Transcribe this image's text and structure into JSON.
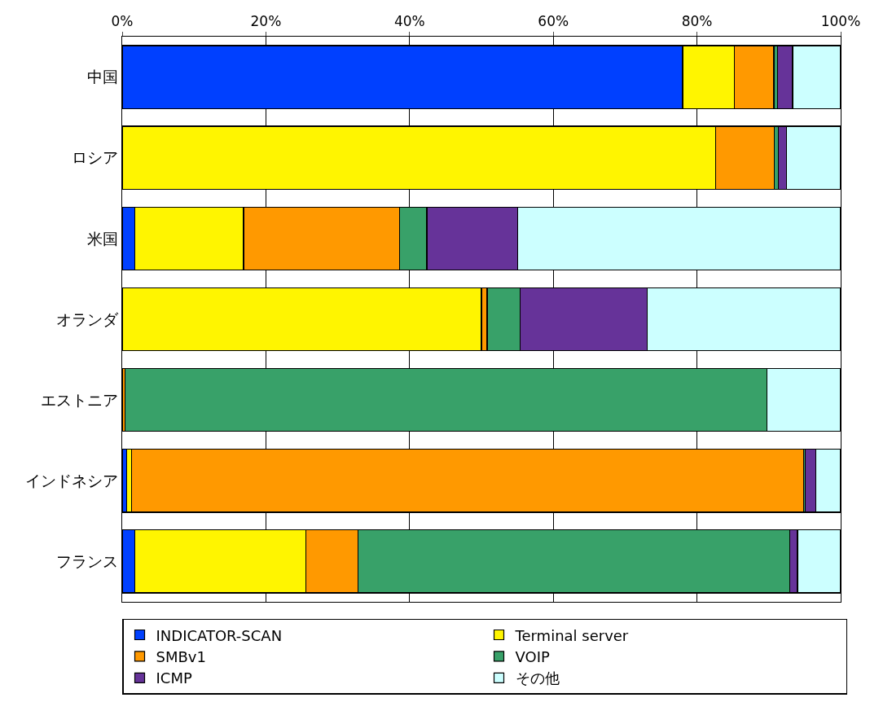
{
  "chart_data": {
    "type": "bar",
    "orientation": "horizontal",
    "stacked": true,
    "categories": [
      "中国",
      "ロシア",
      "米国",
      "オランダ",
      "エストニア",
      "インドネシア",
      "フランス"
    ],
    "series": [
      {
        "name": "INDICATOR-SCAN",
        "color": "#0040ff",
        "values": [
          78.0,
          0.1,
          1.8,
          0.1,
          0,
          0.6,
          1.8
        ]
      },
      {
        "name": "Terminal server",
        "color": "#fff500",
        "values": [
          7.2,
          82.5,
          15.1,
          49.9,
          0,
          0.7,
          23.8
        ]
      },
      {
        "name": "SMBv1",
        "color": "#ff9900",
        "values": [
          5.5,
          8.2,
          21.7,
          0.8,
          0.4,
          93.5,
          7.2
        ]
      },
      {
        "name": "VOIP",
        "color": "#38a169",
        "values": [
          0.5,
          0.5,
          3.8,
          4.6,
          89.3,
          0.3,
          60.1
        ]
      },
      {
        "name": "ICMP",
        "color": "#663399",
        "values": [
          2.1,
          1.2,
          12.6,
          17.7,
          0,
          1.4,
          1.1
        ]
      },
      {
        "name": "その他",
        "color": "#ccffff",
        "values": [
          6.7,
          7.5,
          45.0,
          26.9,
          10.3,
          3.5,
          6.0
        ]
      }
    ],
    "xlim": [
      0,
      100
    ],
    "xticks": [
      {
        "value": 0,
        "label": "0%"
      },
      {
        "value": 20,
        "label": "20%"
      },
      {
        "value": 40,
        "label": "40%"
      },
      {
        "value": 60,
        "label": "60%"
      },
      {
        "value": 80,
        "label": "80%"
      },
      {
        "value": 100,
        "label": "100%"
      }
    ],
    "grid": "x",
    "legend": "bottom"
  }
}
